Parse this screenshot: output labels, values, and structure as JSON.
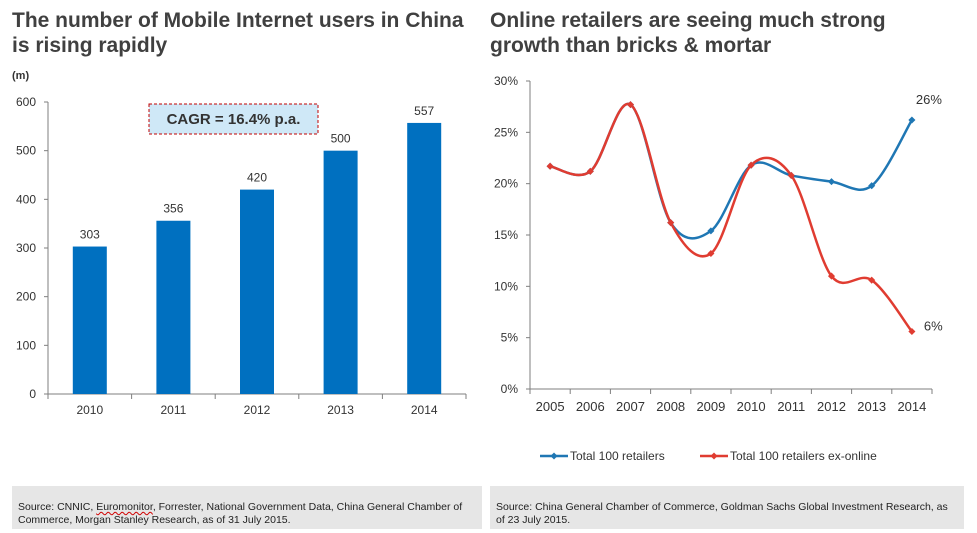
{
  "colors": {
    "bar": "#0070c0",
    "line_total": "#1f77b4",
    "line_ex": "#e03c31",
    "cagr_bg": "#cfe8f7",
    "cagr_border": "#c00000",
    "source_bg": "#e6e6e6"
  },
  "chart_data": [
    {
      "type": "bar",
      "title": "The number of Mobile Internet users in China is rising rapidly",
      "ylabel": "(m)",
      "xlabel": "",
      "categories": [
        "2010",
        "2011",
        "2012",
        "2013",
        "2014"
      ],
      "values": [
        303,
        356,
        420,
        500,
        557
      ],
      "value_labels": [
        "303",
        "356",
        "420",
        "500",
        "557"
      ],
      "ylim": [
        0,
        600
      ],
      "yticks": [
        0,
        100,
        200,
        300,
        400,
        500,
        600
      ],
      "ytick_labels": [
        "0",
        "100",
        "200",
        "300",
        "400",
        "500",
        "600"
      ],
      "annotation": "CAGR = 16.4% p.a."
    },
    {
      "type": "line",
      "title": "Online retailers are seeing much strong growth than bricks & mortar",
      "x": [
        "2005",
        "2006",
        "2007",
        "2008",
        "2009",
        "2010",
        "2011",
        "2012",
        "2013",
        "2014"
      ],
      "series": [
        {
          "name": "Total 100 retailers",
          "values": [
            21.7,
            21.2,
            27.7,
            16.2,
            15.4,
            21.8,
            20.8,
            20.2,
            19.8,
            26.2
          ],
          "end_label": "26%"
        },
        {
          "name": "Total 100 retailers ex-online",
          "values": [
            21.7,
            21.2,
            27.7,
            16.2,
            13.2,
            21.8,
            20.8,
            11.0,
            10.6,
            5.6
          ],
          "end_label": "6%"
        }
      ],
      "ylim": [
        0,
        30
      ],
      "yticks": [
        0,
        5,
        10,
        15,
        20,
        25,
        30
      ],
      "ytick_labels": [
        "0%",
        "5%",
        "10%",
        "15%",
        "20%",
        "25%",
        "30%"
      ]
    }
  ],
  "sources": {
    "left_parts": [
      "Source: CNNIC, ",
      "Euromonitor",
      ", Forrester, National Government Data, China General Chamber of Commerce, Morgan Stanley Research, as of 31 July 2015."
    ],
    "right": "Source: China General Chamber of Commerce, Goldman Sachs Global Investment Research,  as of 23 July 2015."
  }
}
